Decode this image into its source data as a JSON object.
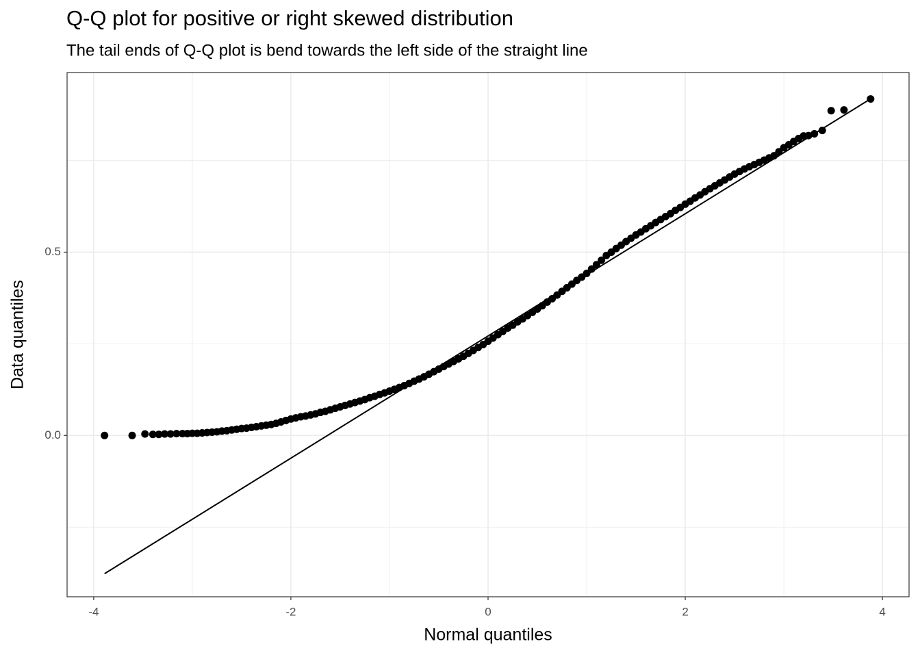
{
  "chart_data": {
    "type": "scatter",
    "title": "Q-Q plot for positive or right skewed distribution",
    "subtitle": "The tail ends of Q-Q plot is bend towards the left side of the straight line",
    "x_label": "Normal quantiles",
    "y_label": "Data quantiles",
    "xlim": [
      -4.27,
      4.27
    ],
    "ylim": [
      -0.44,
      0.99
    ],
    "xticks": [
      -4,
      -2,
      0,
      2,
      4
    ],
    "yticks": [
      {
        "value": 0,
        "label": "0.0"
      },
      {
        "value": 0.5,
        "label": "0.5"
      }
    ],
    "x_minor_ticks": [
      -3,
      -1,
      1,
      3
    ],
    "y_minor_ticks": [
      -0.25,
      0.25,
      0.75
    ],
    "grid": true,
    "color": "#000000",
    "x": [
      -3.89,
      -3.61,
      -3.48,
      -3.4,
      -3.34,
      -3.28,
      -3.22,
      -3.16,
      -3.1,
      -3.05,
      -3,
      -2.95,
      -2.9,
      -2.85,
      -2.8,
      -2.75,
      -2.7,
      -2.65,
      -2.6,
      -2.55,
      -2.5,
      -2.45,
      -2.4,
      -2.35,
      -2.3,
      -2.25,
      -2.2,
      -2.15,
      -2.1,
      -2.05,
      -2,
      -1.95,
      -1.9,
      -1.85,
      -1.8,
      -1.75,
      -1.7,
      -1.65,
      -1.6,
      -1.55,
      -1.5,
      -1.45,
      -1.4,
      -1.35,
      -1.3,
      -1.25,
      -1.2,
      -1.15,
      -1.1,
      -1.05,
      -1,
      -0.95,
      -0.9,
      -0.85,
      -0.8,
      -0.75,
      -0.7,
      -0.65,
      -0.6,
      -0.55,
      -0.5,
      -0.45,
      -0.4,
      -0.35,
      -0.3,
      -0.25,
      -0.2,
      -0.15,
      -0.1,
      -0.05,
      0,
      0.05,
      0.1,
      0.15,
      0.2,
      0.25,
      0.3,
      0.35,
      0.4,
      0.45,
      0.5,
      0.55,
      0.6,
      0.65,
      0.7,
      0.75,
      0.8,
      0.85,
      0.9,
      0.95,
      1,
      1.05,
      1.1,
      1.15,
      1.2,
      1.25,
      1.3,
      1.35,
      1.4,
      1.45,
      1.5,
      1.55,
      1.6,
      1.65,
      1.7,
      1.75,
      1.8,
      1.85,
      1.9,
      1.95,
      2,
      2.05,
      2.1,
      2.15,
      2.2,
      2.25,
      2.3,
      2.35,
      2.4,
      2.45,
      2.5,
      2.55,
      2.6,
      2.65,
      2.7,
      2.75,
      2.8,
      2.85,
      2.9,
      2.95,
      3,
      3.05,
      3.1,
      3.15,
      3.2,
      3.25,
      3.31,
      3.39,
      3.48,
      3.61,
      3.88
    ],
    "y": [
      0,
      0,
      0.004,
      0.003,
      0.003,
      0.004,
      0.004,
      0.005,
      0.005,
      0.005,
      0.006,
      0.006,
      0.007,
      0.008,
      0.009,
      0.01,
      0.012,
      0.013,
      0.015,
      0.017,
      0.019,
      0.02,
      0.022,
      0.024,
      0.026,
      0.028,
      0.03,
      0.033,
      0.037,
      0.041,
      0.045,
      0.048,
      0.051,
      0.053,
      0.056,
      0.059,
      0.063,
      0.066,
      0.07,
      0.074,
      0.078,
      0.082,
      0.086,
      0.09,
      0.094,
      0.098,
      0.103,
      0.107,
      0.112,
      0.116,
      0.121,
      0.126,
      0.131,
      0.136,
      0.142,
      0.148,
      0.154,
      0.16,
      0.167,
      0.174,
      0.181,
      0.188,
      0.195,
      0.202,
      0.209,
      0.216,
      0.224,
      0.232,
      0.24,
      0.248,
      0.257,
      0.266,
      0.275,
      0.284,
      0.293,
      0.301,
      0.31,
      0.318,
      0.327,
      0.336,
      0.345,
      0.354,
      0.364,
      0.373,
      0.383,
      0.393,
      0.403,
      0.413,
      0.423,
      0.432,
      0.442,
      0.454,
      0.466,
      0.478,
      0.491,
      0.5,
      0.51,
      0.519,
      0.529,
      0.538,
      0.547,
      0.555,
      0.564,
      0.572,
      0.581,
      0.589,
      0.597,
      0.605,
      0.614,
      0.622,
      0.631,
      0.639,
      0.648,
      0.656,
      0.665,
      0.673,
      0.681,
      0.689,
      0.697,
      0.705,
      0.713,
      0.72,
      0.727,
      0.733,
      0.739,
      0.745,
      0.751,
      0.757,
      0.763,
      0.774,
      0.785,
      0.793,
      0.802,
      0.81,
      0.817,
      0.818,
      0.823,
      0.832,
      0.886,
      0.888,
      0.918
    ],
    "reference_line": {
      "x": [
        -3.89,
        3.89
      ],
      "y": [
        -0.377,
        0.92
      ]
    }
  }
}
